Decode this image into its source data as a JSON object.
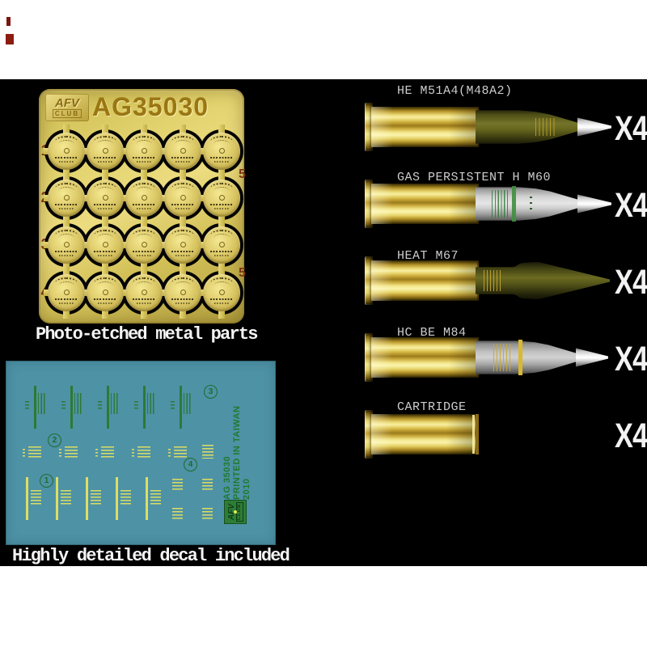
{
  "pe_sheet": {
    "code": "AG35030",
    "logo": {
      "top": "AFV",
      "bottom": "CLUB"
    },
    "row_labels": [
      "1",
      "2",
      "3",
      "4"
    ],
    "side_labels": [
      "5",
      "5"
    ],
    "grid": {
      "rows": 4,
      "cols": 5
    },
    "caption": "Photo-etched metal parts"
  },
  "decal_sheet": {
    "caption": "Highly detailed decal included",
    "print_lines": [
      "AG 35030",
      "PRINTED IN TAIWAN",
      "2010"
    ],
    "logo": {
      "top": "AFV",
      "bottom": "CLUB"
    },
    "circled_numbers": [
      "1",
      "2",
      "3",
      "4"
    ]
  },
  "shells": [
    {
      "label": "HE M51A4(M48A2)",
      "qty": "X4"
    },
    {
      "label": "GAS PERSISTENT H M60",
      "qty": "X4"
    },
    {
      "label": "HEAT M67",
      "qty": "X4"
    },
    {
      "label": "HC BE M84",
      "qty": "X4"
    },
    {
      "label": "CARTRIDGE",
      "qty": "X4"
    }
  ],
  "colors": {
    "background": "#000000",
    "border_bands": "#ffffff",
    "pe_gold": "#d6c45e",
    "pe_code_text": "#9a7614",
    "pe_number_text": "#7c3514",
    "decal_teal": "#4e92a6",
    "decal_green": "#2d7a35",
    "decal_yellow": "#dede62",
    "brass": "#e3cd5f",
    "olive_drab": "#6b6b22",
    "shell_gray": "#cfcfcf",
    "label_text": "#cdcdcd",
    "caption_text": "#f4f4f4"
  }
}
